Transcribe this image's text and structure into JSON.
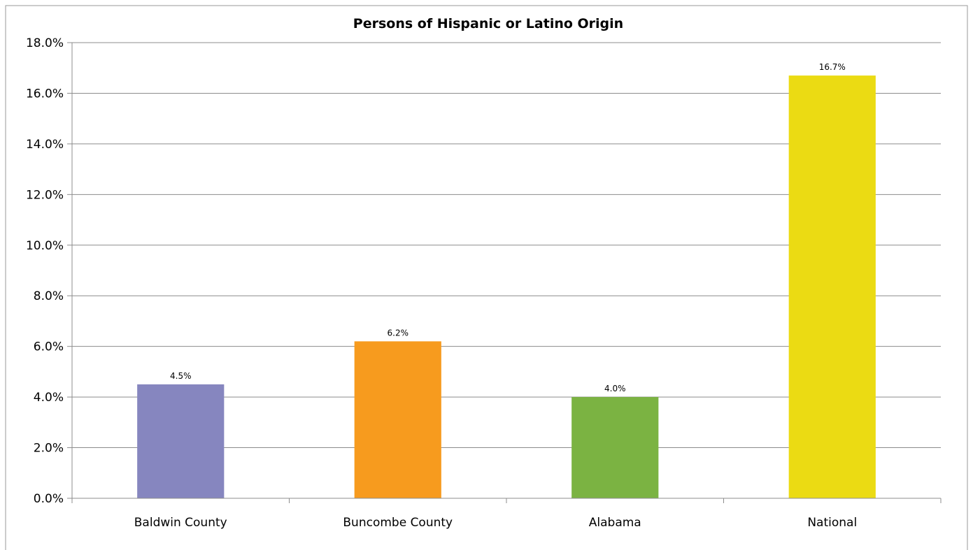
{
  "chart_data": {
    "type": "bar",
    "title": "Persons of Hispanic or Latino Origin",
    "xlabel": "",
    "ylabel": "",
    "categories": [
      "Baldwin County",
      "Buncombe County",
      "Alabama",
      "National"
    ],
    "values": [
      4.5,
      6.2,
      4.0,
      16.7
    ],
    "data_labels": [
      "4.5%",
      "6.2%",
      "4.0%",
      "16.7%"
    ],
    "bar_colors": [
      "#8686BF",
      "#F79B1E",
      "#7BB342",
      "#EBDB13"
    ],
    "ylim": [
      0,
      18
    ],
    "yticks": [
      0,
      2,
      4,
      6,
      8,
      10,
      12,
      14,
      16,
      18
    ],
    "ytick_labels": [
      "0.0%",
      "2.0%",
      "4.0%",
      "6.0%",
      "8.0%",
      "10.0%",
      "12.0%",
      "14.0%",
      "16.0%",
      "18.0%"
    ],
    "grid": true,
    "legend": "none"
  }
}
